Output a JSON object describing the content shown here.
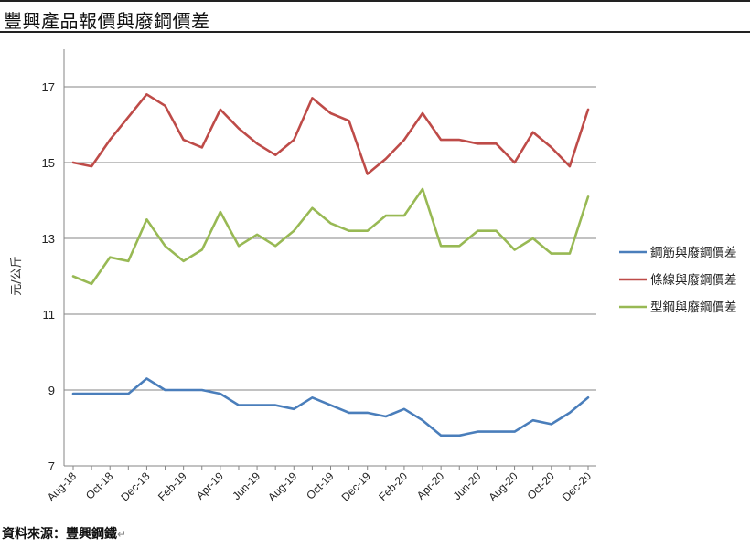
{
  "header": {
    "title": "豐興產品報價與廢鋼價差"
  },
  "footer": {
    "source": "資料來源：豐興鋼鐵",
    "mark": "↵"
  },
  "colors": {
    "rebar": "#4a7ebb",
    "wire": "#be4b48",
    "section": "#98b954",
    "axis": "#868686",
    "grid": "#868686"
  },
  "chart_data": {
    "type": "line",
    "title": "",
    "xlabel": "",
    "ylabel": "元/公斤",
    "ylim": [
      7,
      17
    ],
    "yticks": [
      7,
      9,
      11,
      13,
      15,
      17
    ],
    "grid": true,
    "legend_position": "right",
    "x": [
      "Aug-18",
      "Sep-18",
      "Oct-18",
      "Nov-18",
      "Dec-18",
      "Jan-19",
      "Feb-19",
      "Mar-19",
      "Apr-19",
      "May-19",
      "Jun-19",
      "Jul-19",
      "Aug-19",
      "Sep-19",
      "Oct-19",
      "Nov-19",
      "Dec-19",
      "Jan-20",
      "Feb-20",
      "Mar-20",
      "Apr-20",
      "May-20",
      "Jun-20",
      "Jul-20",
      "Aug-20",
      "Sep-20",
      "Oct-20",
      "Nov-20",
      "Dec-20"
    ],
    "xtick_labels": [
      "Aug-18",
      "Oct-18",
      "Dec-18",
      "Feb-19",
      "Apr-19",
      "Jun-19",
      "Aug-19",
      "Oct-19",
      "Dec-19",
      "Feb-20",
      "Apr-20",
      "Jun-20",
      "Aug-20",
      "Oct-20",
      "Dec-20"
    ],
    "series": [
      {
        "name": "鋼筋與廢鋼價差",
        "color": "#4a7ebb",
        "values": [
          8.9,
          8.9,
          8.9,
          8.9,
          9.3,
          9.0,
          9.0,
          9.0,
          8.9,
          8.6,
          8.6,
          8.6,
          8.5,
          8.8,
          8.6,
          8.4,
          8.4,
          8.3,
          8.5,
          8.2,
          7.8,
          7.8,
          7.9,
          7.9,
          7.9,
          8.2,
          8.1,
          8.4,
          8.8
        ]
      },
      {
        "name": "條線與廢鋼價差",
        "color": "#be4b48",
        "values": [
          15.0,
          14.9,
          15.6,
          16.2,
          16.8,
          16.5,
          15.6,
          15.4,
          16.4,
          15.9,
          15.5,
          15.2,
          15.6,
          16.7,
          16.3,
          16.1,
          14.7,
          15.1,
          15.6,
          16.3,
          15.6,
          15.6,
          15.5,
          15.5,
          15.0,
          15.8,
          15.4,
          14.9,
          16.4
        ]
      },
      {
        "name": "型鋼與廢鋼價差",
        "color": "#98b954",
        "values": [
          12.0,
          11.8,
          12.5,
          12.4,
          13.5,
          12.8,
          12.4,
          12.7,
          13.7,
          12.8,
          13.1,
          12.8,
          13.2,
          13.8,
          13.4,
          13.2,
          13.2,
          13.6,
          13.6,
          14.3,
          12.8,
          12.8,
          13.2,
          13.2,
          12.7,
          13.0,
          12.6,
          12.6,
          14.1
        ]
      }
    ]
  }
}
